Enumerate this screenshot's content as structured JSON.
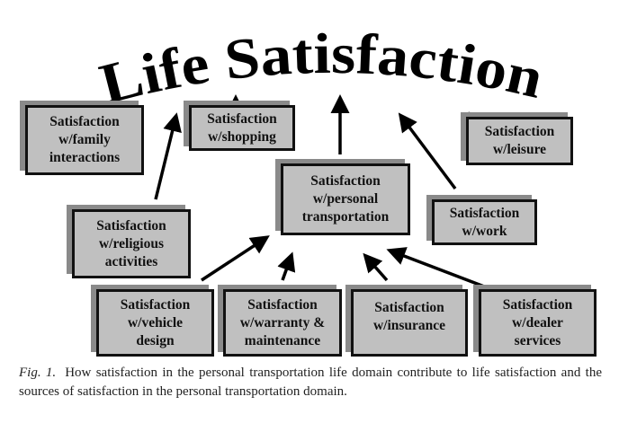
{
  "title": "Life Satisfaction",
  "nodes": {
    "family": "Satisfaction\nw/family\ninteractions",
    "shopping": "Satisfaction\nw/shopping",
    "leisure": "Satisfaction\nw/leisure",
    "transportation": "Satisfaction\nw/personal\ntransportation",
    "religious": "Satisfaction\nw/religious\nactivities",
    "work": "Satisfaction\nw/work",
    "vehicle": "Satisfaction\nw/vehicle\ndesign",
    "warranty": "Satisfaction\nw/warranty &\nmaintenance",
    "insurance": "Satisfaction\nw/insurance",
    "dealer": "Satisfaction\nw/dealer\nservices"
  },
  "edges": [
    {
      "from": "family",
      "to": "title"
    },
    {
      "from": "religious",
      "to": "title"
    },
    {
      "from": "shopping",
      "to": "title"
    },
    {
      "from": "transportation",
      "to": "title"
    },
    {
      "from": "work",
      "to": "title"
    },
    {
      "from": "leisure",
      "to": "title"
    },
    {
      "from": "vehicle",
      "to": "transportation"
    },
    {
      "from": "warranty",
      "to": "transportation"
    },
    {
      "from": "insurance",
      "to": "transportation"
    },
    {
      "from": "dealer",
      "to": "transportation"
    }
  ],
  "caption": {
    "label": "Fig. 1.",
    "text": "How satisfaction in the personal transportation life domain contribute to life satisfaction and the sources of satisfaction in the personal transportation domain."
  }
}
